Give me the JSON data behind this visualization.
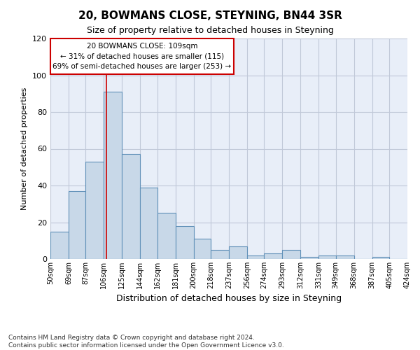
{
  "title": "20, BOWMANS CLOSE, STEYNING, BN44 3SR",
  "subtitle": "Size of property relative to detached houses in Steyning",
  "xlabel": "Distribution of detached houses by size in Steyning",
  "ylabel": "Number of detached properties",
  "footnote": "Contains HM Land Registry data © Crown copyright and database right 2024.\nContains public sector information licensed under the Open Government Licence v3.0.",
  "bar_left_edges": [
    50,
    69,
    87,
    106,
    125,
    144,
    162,
    181,
    200,
    218,
    237,
    256,
    274,
    293,
    312,
    331,
    349,
    368,
    387,
    405
  ],
  "bar_widths": [
    19,
    18,
    19,
    19,
    19,
    18,
    19,
    19,
    18,
    19,
    19,
    18,
    19,
    19,
    19,
    18,
    19,
    19,
    18,
    19
  ],
  "bar_heights": [
    15,
    37,
    53,
    91,
    57,
    39,
    25,
    18,
    11,
    5,
    7,
    2,
    3,
    5,
    1,
    2,
    2,
    0,
    1,
    0
  ],
  "tick_labels": [
    "50sqm",
    "69sqm",
    "87sqm",
    "106sqm",
    "125sqm",
    "144sqm",
    "162sqm",
    "181sqm",
    "200sqm",
    "218sqm",
    "237sqm",
    "256sqm",
    "274sqm",
    "293sqm",
    "312sqm",
    "331sqm",
    "349sqm",
    "368sqm",
    "387sqm",
    "405sqm",
    "424sqm"
  ],
  "bar_color": "#c8d8e8",
  "bar_edge_color": "#6090b8",
  "grid_color": "#c0c8d8",
  "background_color": "#e8eef8",
  "vline_x": 109,
  "vline_color": "#cc0000",
  "annotation_text": "20 BOWMANS CLOSE: 109sqm\n← 31% of detached houses are smaller (115)\n69% of semi-detached houses are larger (253) →",
  "annotation_box_color": "white",
  "annotation_box_edge": "#cc0000",
  "ylim": [
    0,
    120
  ],
  "yticks": [
    0,
    20,
    40,
    60,
    80,
    100,
    120
  ],
  "title_fontsize": 11,
  "subtitle_fontsize": 9,
  "ylabel_fontsize": 8,
  "xlabel_fontsize": 9,
  "tick_fontsize": 7,
  "footnote_fontsize": 6.5
}
